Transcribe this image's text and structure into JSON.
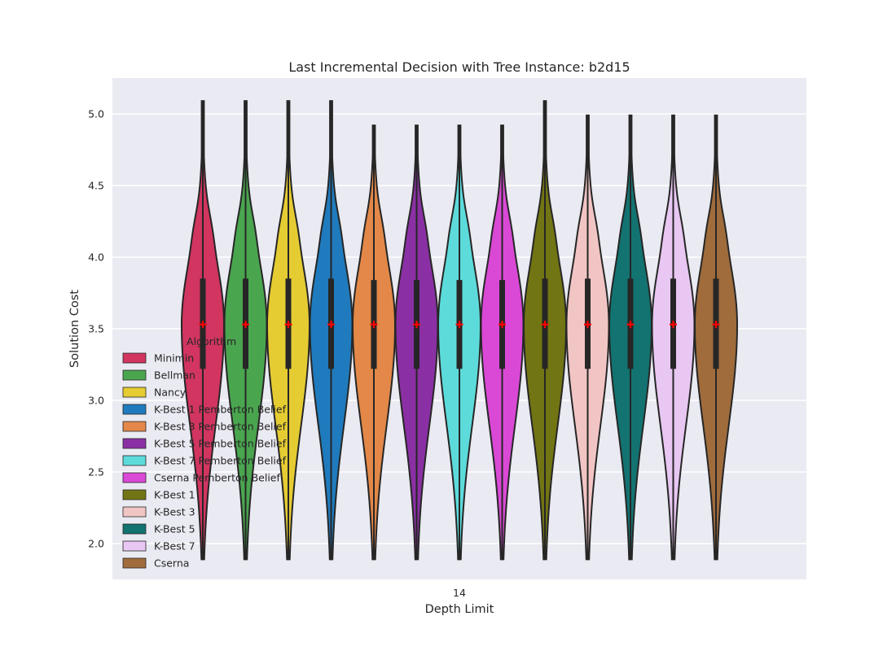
{
  "chart_data": {
    "type": "violin",
    "title": "Last Incremental Decision with Tree Instance: b2d15",
    "xlabel": "Depth Limit",
    "ylabel": "Solution Cost",
    "categories": [
      "14"
    ],
    "ylim": [
      1.75,
      5.25
    ],
    "yticks": [
      2.0,
      2.5,
      3.0,
      3.5,
      4.0,
      4.5,
      5.0
    ],
    "grid": true,
    "legend": {
      "title": "Algorithm",
      "position": "left"
    },
    "series": [
      {
        "name": "Minimin",
        "color": "#d13560",
        "min": 1.89,
        "q1": 3.22,
        "median": 3.53,
        "q3": 3.85,
        "max": 5.09,
        "mean": 3.53
      },
      {
        "name": "Bellman",
        "color": "#4aa54f",
        "min": 1.89,
        "q1": 3.22,
        "median": 3.53,
        "q3": 3.85,
        "max": 5.09,
        "mean": 3.53
      },
      {
        "name": "Nancy",
        "color": "#e5cc32",
        "min": 1.89,
        "q1": 3.22,
        "median": 3.53,
        "q3": 3.85,
        "max": 5.09,
        "mean": 3.53
      },
      {
        "name": "K-Best 1 Pemberton Belief",
        "color": "#1f7bbd",
        "min": 1.89,
        "q1": 3.22,
        "median": 3.53,
        "q3": 3.85,
        "max": 5.09,
        "mean": 3.53
      },
      {
        "name": "K-Best 3 Pemberton Belief",
        "color": "#e38848",
        "min": 1.89,
        "q1": 3.22,
        "median": 3.53,
        "q3": 3.84,
        "max": 4.92,
        "mean": 3.53
      },
      {
        "name": "K-Best 5 Pemberton Belief",
        "color": "#8b30a4",
        "min": 1.89,
        "q1": 3.22,
        "median": 3.53,
        "q3": 3.84,
        "max": 4.92,
        "mean": 3.53
      },
      {
        "name": "K-Best 7 Pemberton Belief",
        "color": "#5ddbdb",
        "min": 1.89,
        "q1": 3.22,
        "median": 3.53,
        "q3": 3.84,
        "max": 4.92,
        "mean": 3.53
      },
      {
        "name": "Cserna Pemberton Belief",
        "color": "#da49d6",
        "min": 1.89,
        "q1": 3.22,
        "median": 3.53,
        "q3": 3.84,
        "max": 4.92,
        "mean": 3.53
      },
      {
        "name": "K-Best 1",
        "color": "#727513",
        "min": 1.89,
        "q1": 3.22,
        "median": 3.53,
        "q3": 3.85,
        "max": 5.09,
        "mean": 3.53
      },
      {
        "name": "K-Best 3",
        "color": "#f2c5c5",
        "min": 1.89,
        "q1": 3.22,
        "median": 3.53,
        "q3": 3.85,
        "max": 4.99,
        "mean": 3.53
      },
      {
        "name": "K-Best 5",
        "color": "#127371",
        "min": 1.89,
        "q1": 3.22,
        "median": 3.53,
        "q3": 3.85,
        "max": 4.99,
        "mean": 3.53
      },
      {
        "name": "K-Best 7",
        "color": "#e8c7f2",
        "min": 1.89,
        "q1": 3.22,
        "median": 3.53,
        "q3": 3.85,
        "max": 4.99,
        "mean": 3.53
      },
      {
        "name": "Cserna",
        "color": "#a06c3c",
        "min": 1.89,
        "q1": 3.22,
        "median": 3.53,
        "q3": 3.85,
        "max": 4.99,
        "mean": 3.53
      }
    ]
  }
}
